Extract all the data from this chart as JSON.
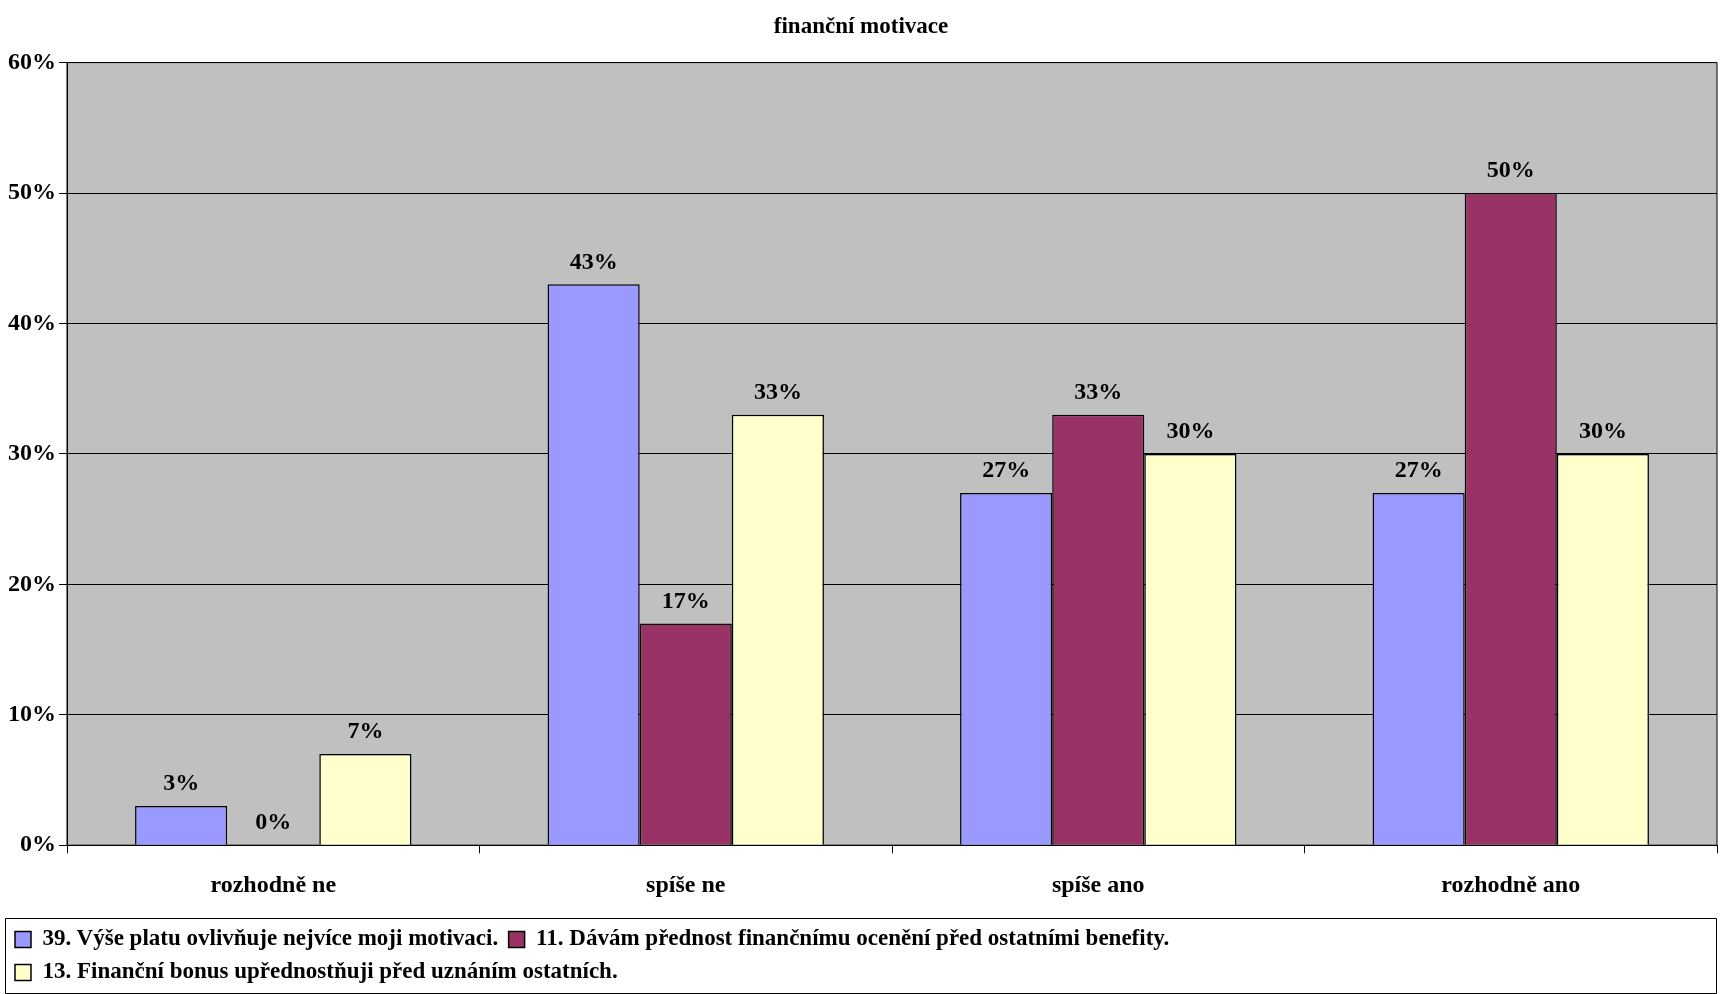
{
  "chart_data": {
    "type": "bar",
    "title": "finanční motivace",
    "categories": [
      "rozhodně ne",
      "spíše ne",
      "spíše ano",
      "rozhodně ano"
    ],
    "series": [
      {
        "name": "39. Výše platu ovlivňuje nejvíce moji motivaci.",
        "color": "#9999ff",
        "values": [
          3,
          43,
          27,
          27
        ],
        "value_labels": [
          "3%",
          "43%",
          "27%",
          "27%"
        ]
      },
      {
        "name": "11. Dávám přednost finančnímu ocenění před ostatními benefity.",
        "color": "#993366",
        "values": [
          0,
          17,
          33,
          50
        ],
        "value_labels": [
          "0%",
          "17%",
          "33%",
          "50%"
        ]
      },
      {
        "name": "13. Finanční bonus upřednostňuji před uznáním ostatních.",
        "color": "#ffffcc",
        "values": [
          7,
          33,
          30,
          30
        ],
        "value_labels": [
          "7%",
          "33%",
          "30%",
          "30%"
        ]
      }
    ],
    "ylim": [
      0,
      60
    ],
    "yticks": [
      {
        "value": 0,
        "label": "0%"
      },
      {
        "value": 10,
        "label": "10%"
      },
      {
        "value": 20,
        "label": "20%"
      },
      {
        "value": 30,
        "label": "30%"
      },
      {
        "value": 40,
        "label": "40%"
      },
      {
        "value": 50,
        "label": "50%"
      },
      {
        "value": 60,
        "label": "60%"
      }
    ],
    "grid": "y",
    "legend": "bottom"
  }
}
